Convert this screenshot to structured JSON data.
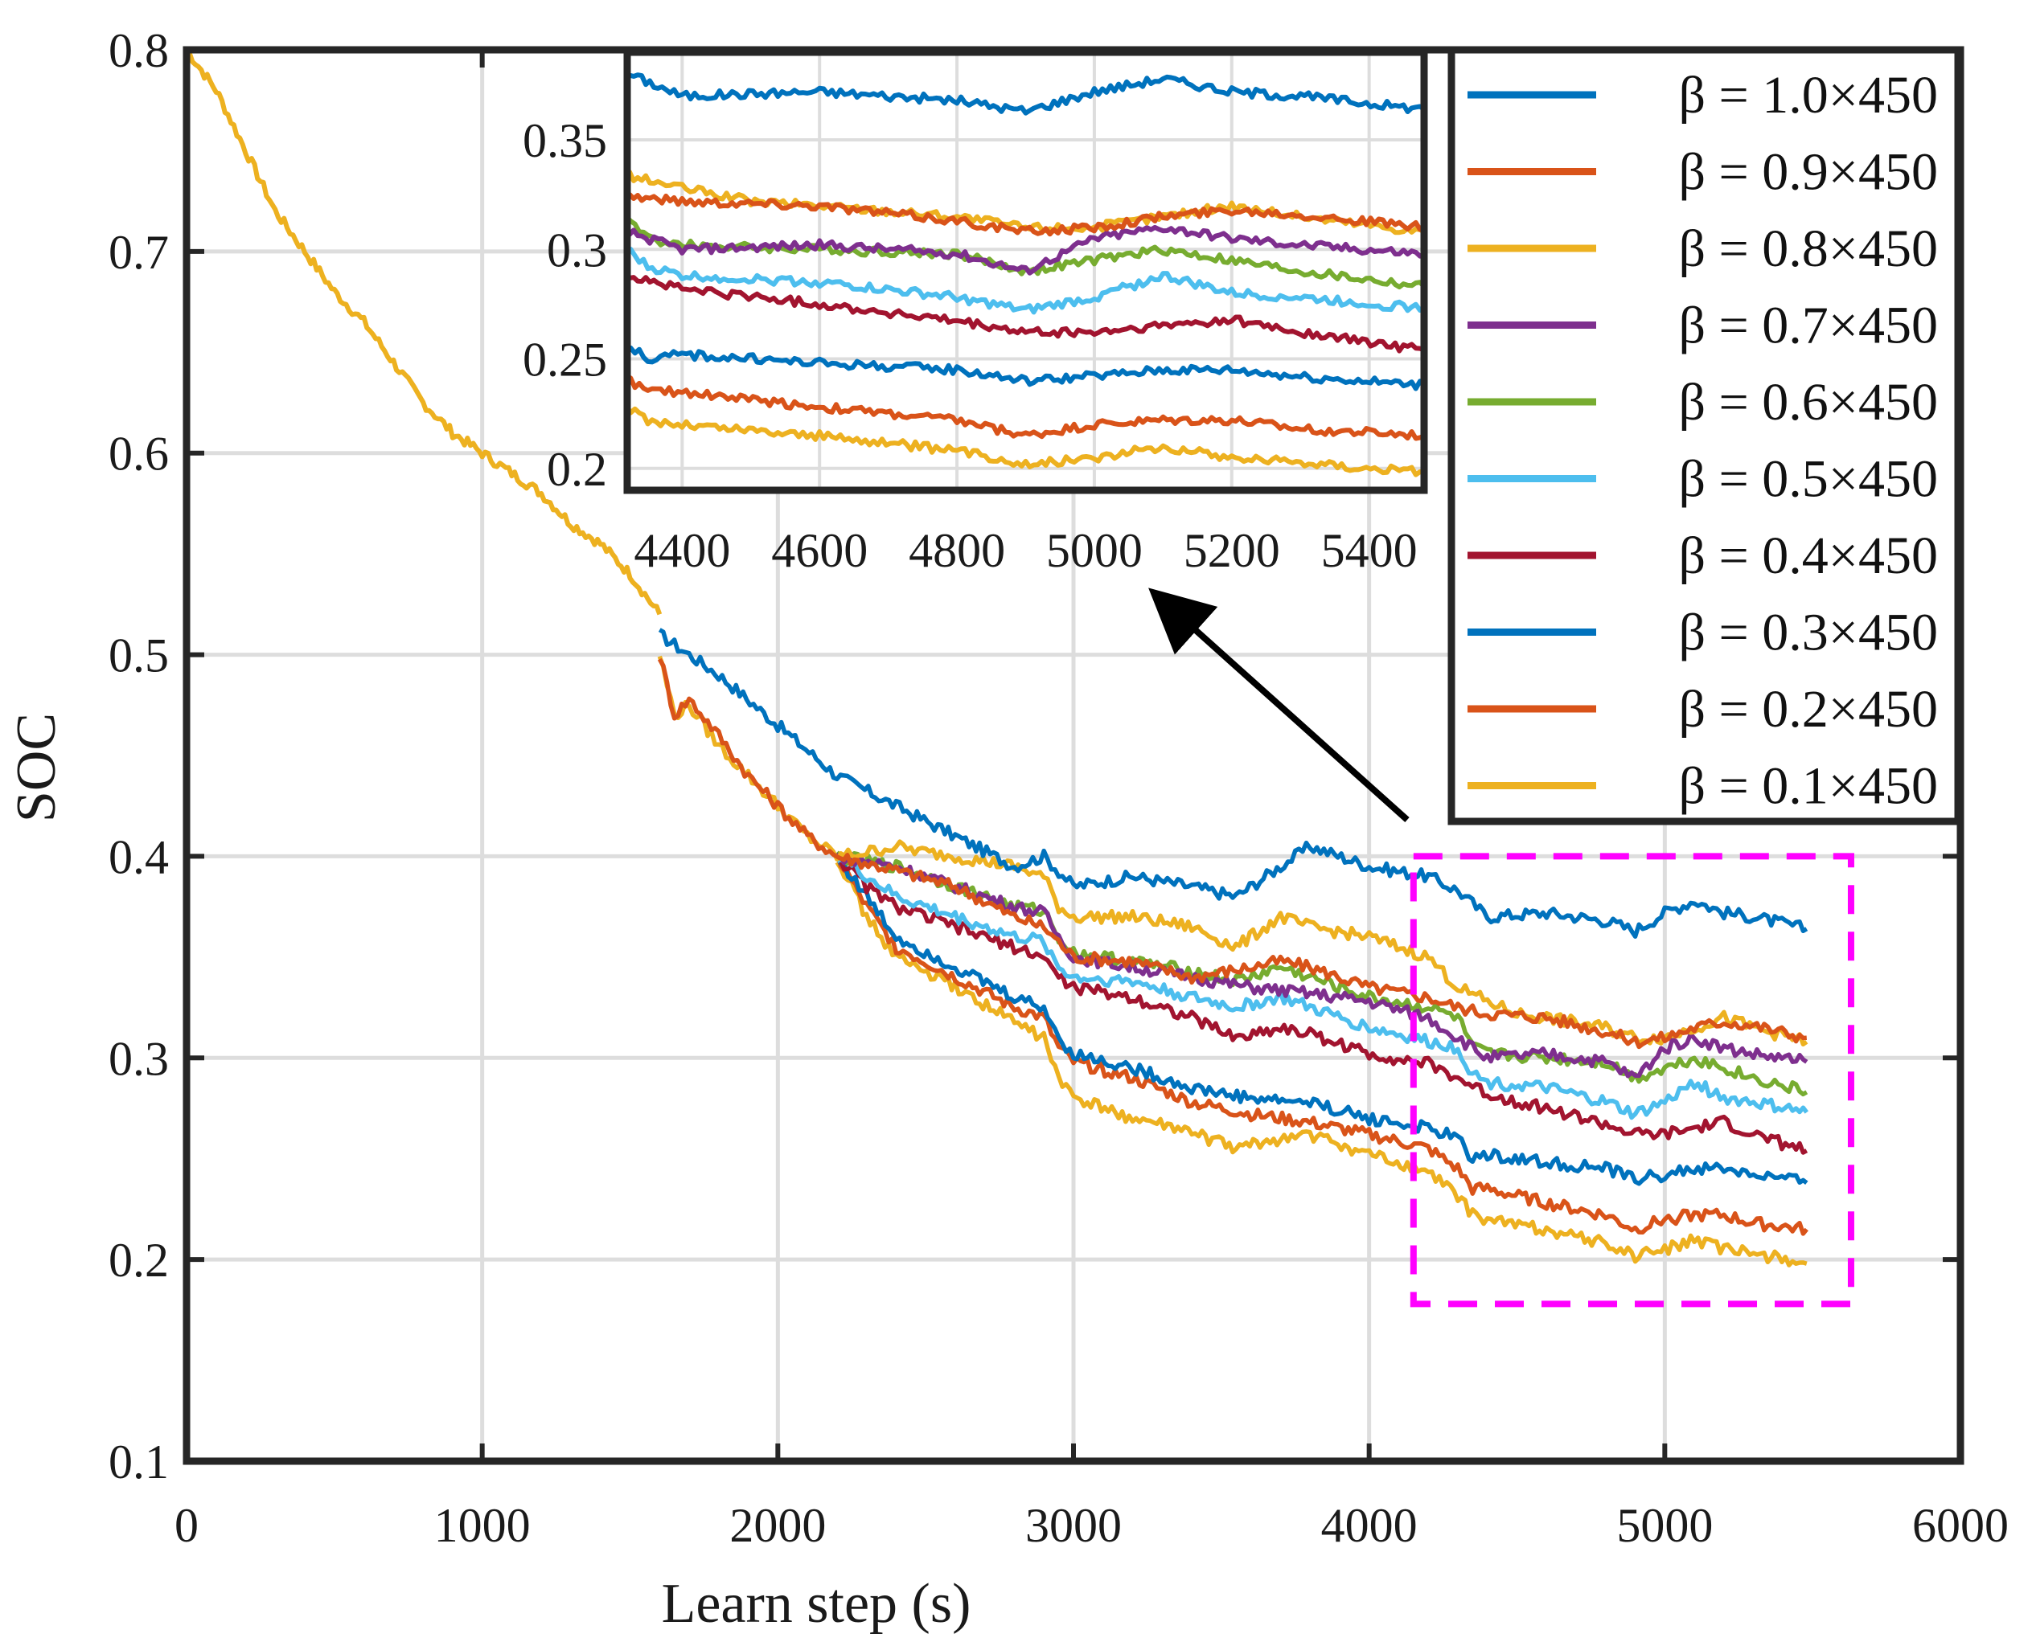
{
  "chart_data": {
    "type": "line",
    "xlabel": "Learn step (s)",
    "ylabel": "SOC",
    "xlim": [
      0,
      6000
    ],
    "ylim": [
      0.1,
      0.8
    ],
    "xticks": [
      "0",
      "1000",
      "2000",
      "3000",
      "4000",
      "5000",
      "6000"
    ],
    "yticks": [
      "0.1",
      "0.2",
      "0.3",
      "0.4",
      "0.5",
      "0.6",
      "0.7",
      "0.8"
    ],
    "grid": true,
    "legend_position": "top-right",
    "common_path": {
      "x": [
        0,
        100,
        200,
        300,
        400,
        500,
        600,
        700,
        800,
        900,
        1000,
        1100,
        1200,
        1300,
        1400,
        1500,
        1550,
        1600
      ],
      "y": [
        0.8,
        0.78,
        0.75,
        0.72,
        0.7,
        0.68,
        0.665,
        0.645,
        0.625,
        0.61,
        0.6,
        0.59,
        0.58,
        0.565,
        0.555,
        0.54,
        0.53,
        0.52
      ]
    },
    "series": [
      {
        "name": "β = 1.0×450",
        "color": "#0072BD",
        "x": [
          1600,
          1700,
          1800,
          2000,
          2200,
          2400,
          2600,
          2800,
          2900,
          3000,
          3200,
          3400,
          3550,
          3700,
          3800,
          4000,
          4200,
          4300,
          4400,
          4600,
          4800,
          4900,
          5000,
          5100,
          5200,
          5300,
          5480
        ],
        "y": [
          0.51,
          0.5,
          0.49,
          0.465,
          0.44,
          0.425,
          0.41,
          0.395,
          0.4,
          0.385,
          0.39,
          0.385,
          0.38,
          0.395,
          0.405,
          0.395,
          0.39,
          0.383,
          0.37,
          0.372,
          0.368,
          0.363,
          0.372,
          0.378,
          0.372,
          0.37,
          0.364
        ]
      },
      {
        "name": "β = 0.9×450",
        "color": "#D95319",
        "x": [
          1600,
          1650,
          1700,
          1800,
          1900,
          2000,
          2100,
          2200,
          2400,
          2600,
          2800,
          2900,
          3000,
          3200,
          3400,
          3600,
          3700,
          3800,
          4000,
          4200,
          4300,
          4400,
          4600,
          4800,
          4900,
          5000,
          5100,
          5200,
          5300,
          5480
        ],
        "y": [
          0.5,
          0.47,
          0.478,
          0.46,
          0.44,
          0.425,
          0.41,
          0.4,
          0.393,
          0.385,
          0.37,
          0.365,
          0.35,
          0.348,
          0.34,
          0.345,
          0.348,
          0.345,
          0.335,
          0.33,
          0.325,
          0.322,
          0.32,
          0.313,
          0.308,
          0.31,
          0.315,
          0.318,
          0.316,
          0.31
        ]
      },
      {
        "name": "β = 0.8×450",
        "color": "#EDB120",
        "x": [
          1600,
          1650,
          1700,
          1800,
          1900,
          2000,
          2100,
          2200,
          2300,
          2400,
          2500,
          2600,
          2800,
          2900,
          2950,
          3000,
          3200,
          3400,
          3550,
          3700,
          3800,
          4000,
          4200,
          4300,
          4400,
          4500,
          4600,
          4800,
          4900,
          5000,
          5100,
          5200,
          5300,
          5480
        ],
        "y": [
          0.5,
          0.47,
          0.475,
          0.455,
          0.44,
          0.425,
          0.41,
          0.4,
          0.402,
          0.405,
          0.402,
          0.4,
          0.395,
          0.39,
          0.375,
          0.37,
          0.37,
          0.365,
          0.355,
          0.37,
          0.365,
          0.36,
          0.35,
          0.335,
          0.328,
          0.322,
          0.32,
          0.315,
          0.31,
          0.31,
          0.315,
          0.32,
          0.315,
          0.308
        ]
      },
      {
        "name": "β = 0.7×450",
        "color": "#7E2F8E",
        "x": [
          2200,
          2400,
          2600,
          2800,
          2900,
          2950,
          3000,
          3200,
          3400,
          3600,
          3800,
          4000,
          4200,
          4300,
          4400,
          4600,
          4800,
          4900,
          5000,
          5100,
          5200,
          5300,
          5480
        ],
        "y": [
          0.4,
          0.395,
          0.385,
          0.375,
          0.372,
          0.36,
          0.35,
          0.345,
          0.34,
          0.335,
          0.332,
          0.328,
          0.32,
          0.31,
          0.3,
          0.302,
          0.298,
          0.29,
          0.305,
          0.31,
          0.305,
          0.302,
          0.298
        ]
      },
      {
        "name": "β = 0.6×450",
        "color": "#77AC30",
        "x": [
          2200,
          2400,
          2600,
          2800,
          2900,
          2950,
          3000,
          3200,
          3400,
          3550,
          3700,
          3800,
          4000,
          4200,
          4300,
          4350,
          4400,
          4600,
          4800,
          4900,
          5000,
          5100,
          5200,
          5300,
          5480
        ],
        "y": [
          0.4,
          0.395,
          0.385,
          0.375,
          0.373,
          0.36,
          0.352,
          0.348,
          0.343,
          0.338,
          0.345,
          0.34,
          0.33,
          0.325,
          0.32,
          0.305,
          0.302,
          0.3,
          0.298,
          0.29,
          0.295,
          0.3,
          0.295,
          0.29,
          0.283
        ]
      },
      {
        "name": "β = 0.5×450",
        "color": "#4DBEEE",
        "x": [
          2200,
          2300,
          2400,
          2600,
          2800,
          2900,
          2950,
          3000,
          3200,
          3400,
          3550,
          3700,
          3800,
          4000,
          4200,
          4300,
          4350,
          4400,
          4600,
          4800,
          4900,
          5000,
          5100,
          5200,
          5300,
          5480
        ],
        "y": [
          0.4,
          0.39,
          0.38,
          0.37,
          0.36,
          0.358,
          0.345,
          0.34,
          0.338,
          0.33,
          0.325,
          0.33,
          0.325,
          0.315,
          0.308,
          0.305,
          0.292,
          0.288,
          0.285,
          0.278,
          0.272,
          0.278,
          0.288,
          0.28,
          0.278,
          0.273
        ]
      },
      {
        "name": "β = 0.4×450",
        "color": "#A2142F",
        "x": [
          2200,
          2300,
          2400,
          2600,
          2800,
          2900,
          2950,
          3000,
          3200,
          3400,
          3550,
          3700,
          3800,
          4000,
          4200,
          4300,
          4400,
          4600,
          4800,
          4900,
          5000,
          5100,
          5200,
          5300,
          5480
        ],
        "y": [
          0.4,
          0.385,
          0.375,
          0.365,
          0.355,
          0.35,
          0.34,
          0.335,
          0.33,
          0.32,
          0.31,
          0.315,
          0.312,
          0.302,
          0.297,
          0.29,
          0.282,
          0.275,
          0.267,
          0.262,
          0.262,
          0.265,
          0.268,
          0.262,
          0.254
        ]
      },
      {
        "name": "β = 0.3×450",
        "color": "#0072BD",
        "x": [
          2200,
          2300,
          2400,
          2600,
          2800,
          2900,
          2950,
          3000,
          3200,
          3400,
          3600,
          3800,
          4000,
          4200,
          4300,
          4350,
          4400,
          4600,
          4800,
          4900,
          5000,
          5100,
          5200,
          5300,
          5480
        ],
        "y": [
          0.4,
          0.38,
          0.36,
          0.345,
          0.33,
          0.325,
          0.31,
          0.302,
          0.295,
          0.285,
          0.28,
          0.278,
          0.27,
          0.265,
          0.26,
          0.25,
          0.252,
          0.248,
          0.245,
          0.24,
          0.242,
          0.245,
          0.245,
          0.242,
          0.238
        ]
      },
      {
        "name": "β = 0.2×450",
        "color": "#D95319",
        "x": [
          2200,
          2300,
          2400,
          2600,
          2800,
          2900,
          2950,
          3000,
          3200,
          3400,
          3600,
          3800,
          4000,
          4200,
          4300,
          4350,
          4400,
          4600,
          4800,
          4900,
          5000,
          5100,
          5200,
          5300,
          5480
        ],
        "y": [
          0.4,
          0.375,
          0.355,
          0.34,
          0.325,
          0.32,
          0.305,
          0.298,
          0.29,
          0.278,
          0.272,
          0.268,
          0.262,
          0.255,
          0.245,
          0.235,
          0.235,
          0.228,
          0.222,
          0.215,
          0.22,
          0.222,
          0.222,
          0.218,
          0.215
        ]
      },
      {
        "name": "β = 0.1×450",
        "color": "#EDB120",
        "x": [
          2200,
          2300,
          2400,
          2600,
          2800,
          2900,
          2950,
          3000,
          3200,
          3400,
          3550,
          3700,
          3800,
          4000,
          4200,
          4300,
          4350,
          4400,
          4600,
          4800,
          4900,
          5000,
          5100,
          5200,
          5300,
          5480
        ],
        "y": [
          0.4,
          0.37,
          0.35,
          0.335,
          0.318,
          0.31,
          0.29,
          0.28,
          0.27,
          0.263,
          0.255,
          0.26,
          0.262,
          0.252,
          0.243,
          0.232,
          0.222,
          0.22,
          0.215,
          0.208,
          0.202,
          0.205,
          0.21,
          0.205,
          0.203,
          0.198
        ]
      }
    ],
    "inset": {
      "xlim": [
        4320,
        5480
      ],
      "ylim": [
        0.19,
        0.39
      ],
      "xticks": [
        "4400",
        "4600",
        "4800",
        "5000",
        "5200",
        "5400"
      ],
      "yticks": [
        "0.2",
        "0.25",
        "0.3",
        "0.35"
      ]
    },
    "zoom_region": {
      "x": [
        4150,
        5630
      ],
      "y": [
        0.178,
        0.4
      ]
    },
    "zoom_color": "#FF00FF",
    "arrow_color": "#000000"
  }
}
